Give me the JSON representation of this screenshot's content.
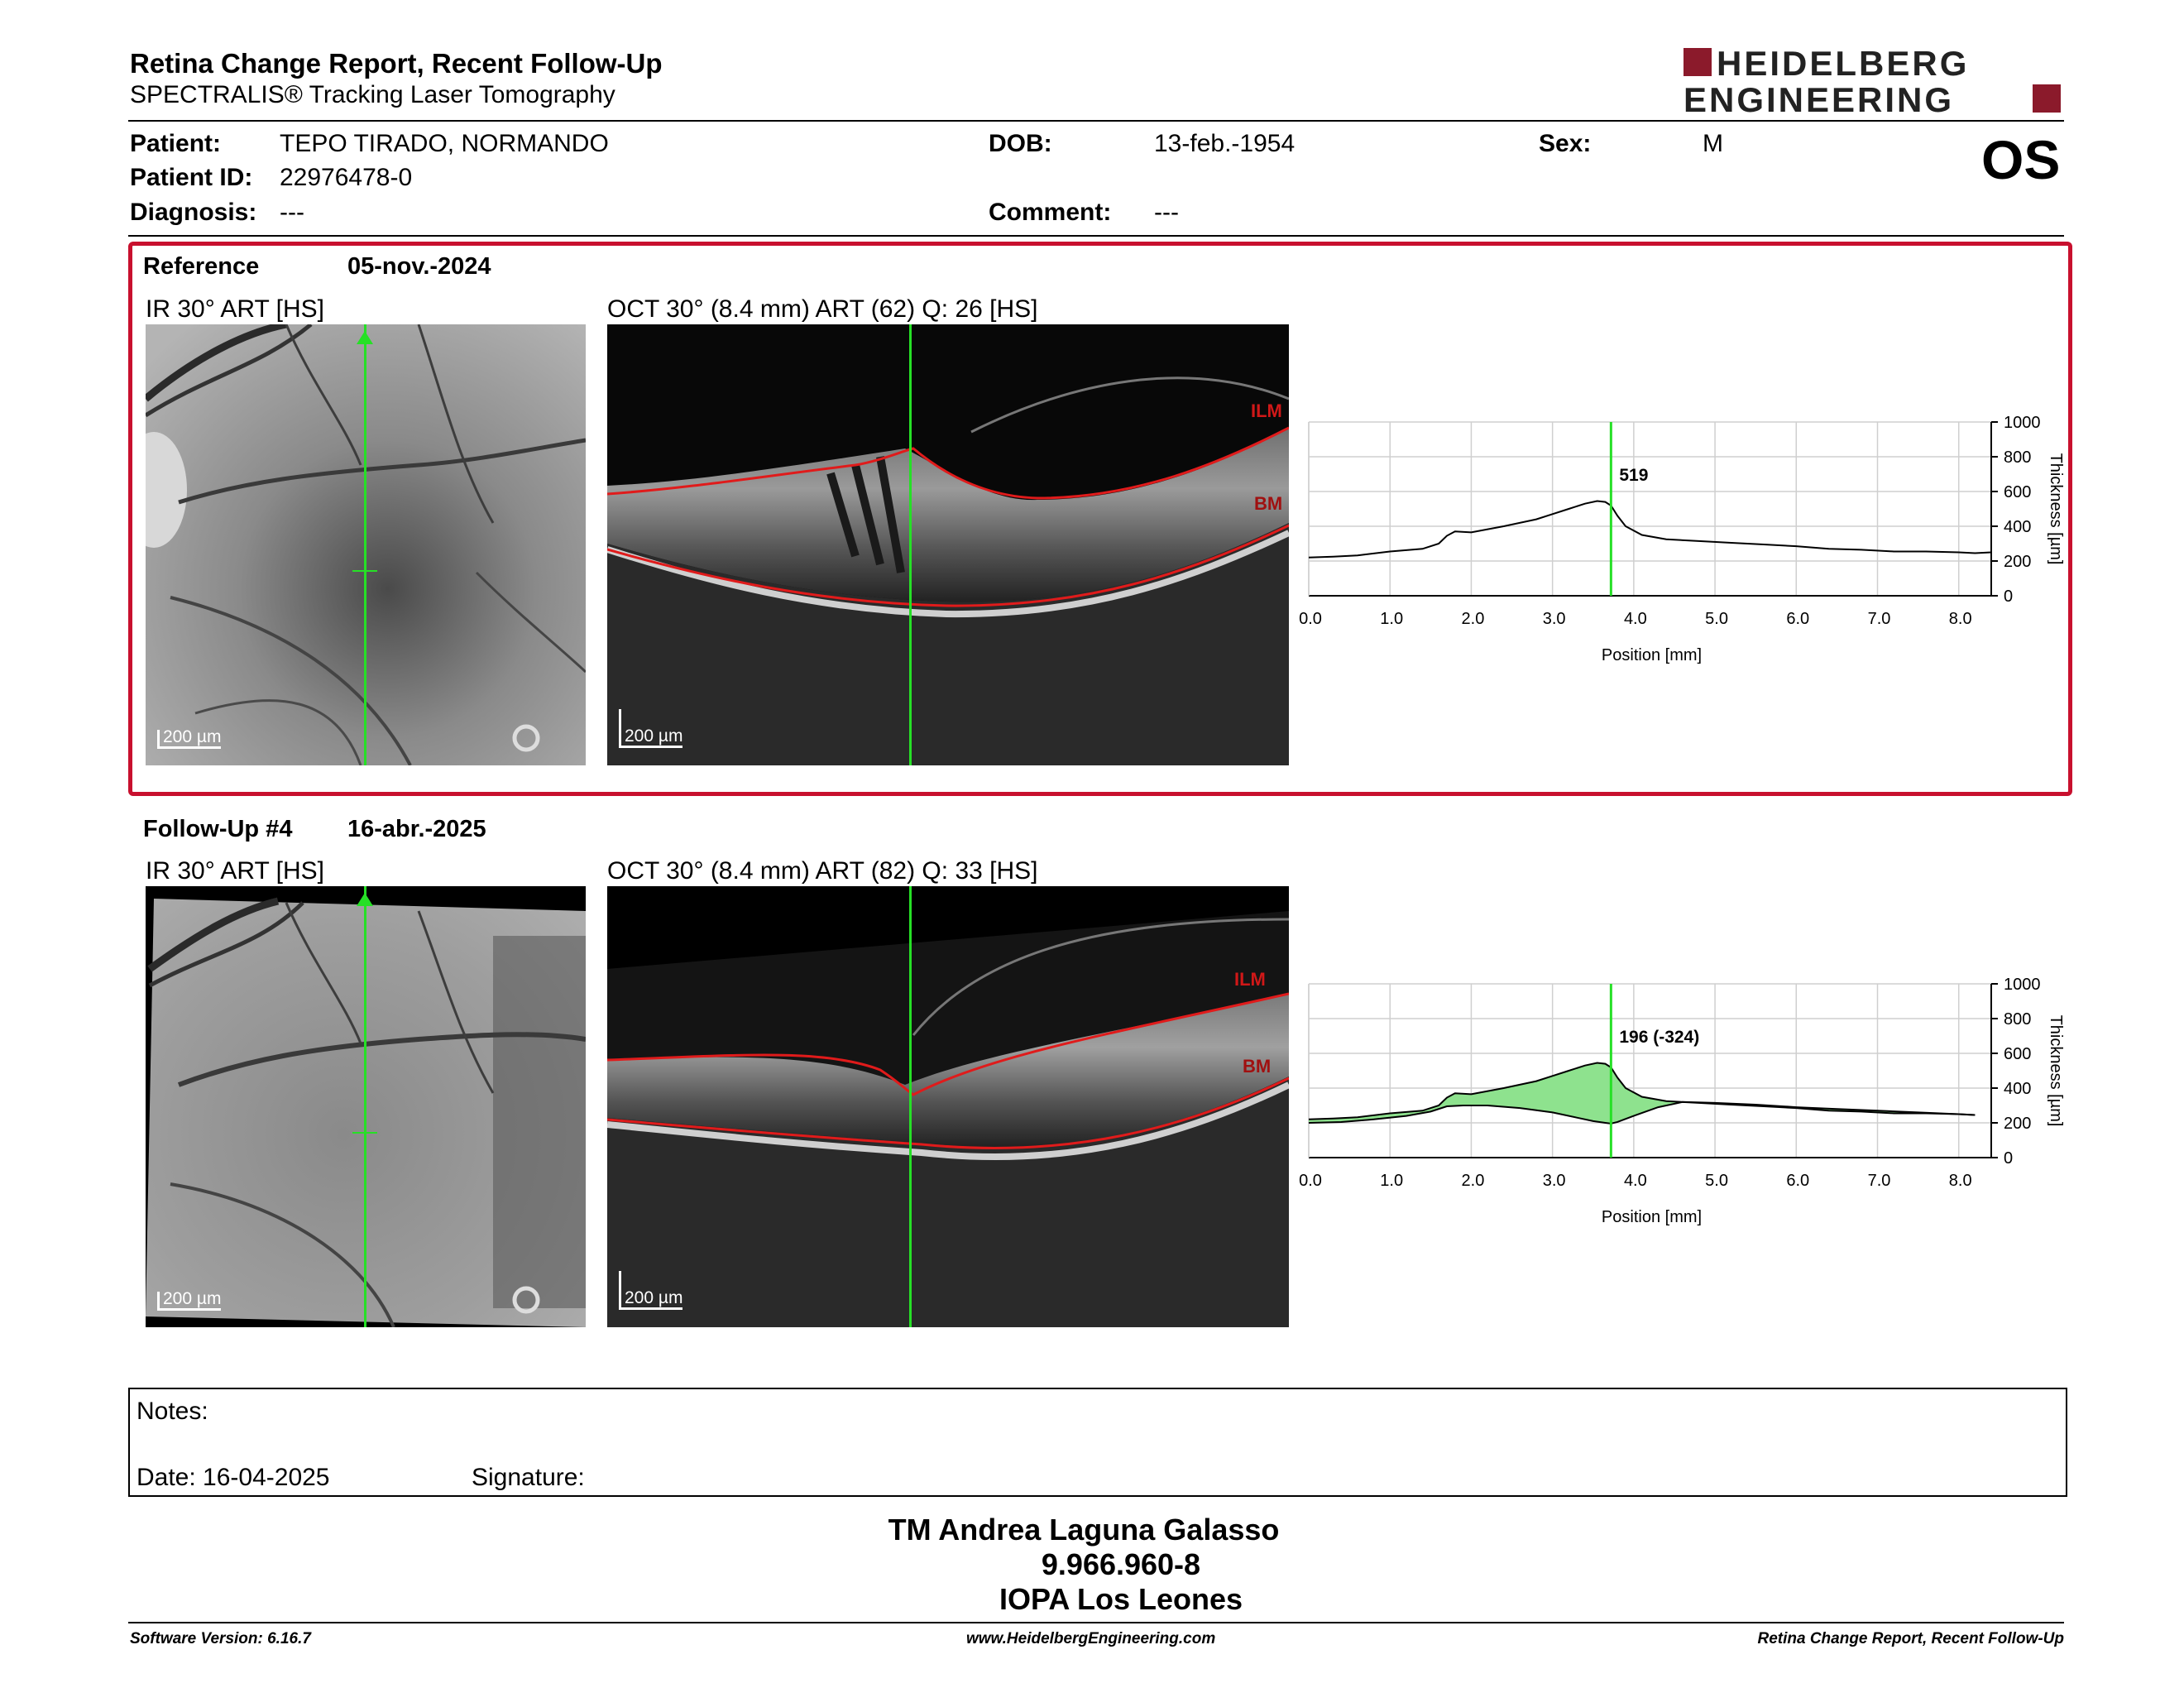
{
  "header": {
    "title": "Retina Change Report, Recent Follow-Up",
    "subtitle": "SPECTRALIS® Tracking Laser Tomography",
    "logo_line1": "HEIDELBERG",
    "logo_line2": "ENGINEERING",
    "eye": "OS"
  },
  "patient": {
    "patient_label": "Patient:",
    "patient_value": "TEPO TIRADO, NORMANDO",
    "id_label": "Patient ID:",
    "id_value": "22976478-0",
    "diagnosis_label": "Diagnosis:",
    "diagnosis_value": "---",
    "dob_label": "DOB:",
    "dob_value": "13-feb.-1954",
    "comment_label": "Comment:",
    "comment_value": "---",
    "sex_label": "Sex:",
    "sex_value": "M"
  },
  "reference": {
    "label": "Reference",
    "date": "05-nov.-2024",
    "ir_caption": "IR 30° ART [HS]",
    "oct_caption": "OCT 30° (8.4 mm) ART (62) Q: 26 [HS]",
    "ir_scale": "200 µm",
    "oct_scale": "200 µm",
    "ilm_label": "ILM",
    "bm_label": "BM"
  },
  "followup": {
    "label": "Follow-Up #4",
    "date": "16-abr.-2025",
    "ir_caption": "IR 30° ART [HS]",
    "oct_caption": "OCT 30° (8.4 mm) ART (82) Q: 33 [HS]",
    "ir_scale": "200 µm",
    "oct_scale": "200 µm",
    "ilm_label": "ILM",
    "bm_label": "BM"
  },
  "chart_data": [
    {
      "type": "line",
      "xlabel": "Position [mm]",
      "ylabel": "Thickness [µm]",
      "xlim": [
        0,
        8.4
      ],
      "ylim": [
        0,
        1000
      ],
      "x_ticks": [
        "0.0",
        "1.0",
        "2.0",
        "3.0",
        "4.0",
        "5.0",
        "6.0",
        "7.0",
        "8.0"
      ],
      "y_ticks": [
        "0",
        "200",
        "400",
        "600",
        "800",
        "1000"
      ],
      "marker_x": 3.72,
      "marker_label": "519",
      "grid": true,
      "series": [
        {
          "x": [
            0,
            0.3,
            0.6,
            1.0,
            1.4,
            1.6,
            1.7,
            1.8,
            2.0,
            2.4,
            2.8,
            3.0,
            3.2,
            3.4,
            3.55,
            3.65,
            3.72,
            3.8,
            3.9,
            4.1,
            4.4,
            4.8,
            5.2,
            5.6,
            6.0,
            6.4,
            6.8,
            7.2,
            7.6,
            8.0,
            8.2,
            8.4
          ],
          "y": [
            220,
            225,
            232,
            255,
            270,
            300,
            345,
            370,
            365,
            400,
            440,
            470,
            500,
            530,
            545,
            540,
            519,
            460,
            400,
            350,
            325,
            315,
            305,
            295,
            285,
            270,
            265,
            255,
            255,
            250,
            245,
            250
          ]
        }
      ]
    },
    {
      "type": "area",
      "xlabel": "Position [mm]",
      "ylabel": "Thickness [µm]",
      "xlim": [
        0,
        8.4
      ],
      "ylim": [
        0,
        1000
      ],
      "x_ticks": [
        "0.0",
        "1.0",
        "2.0",
        "3.0",
        "4.0",
        "5.0",
        "6.0",
        "7.0",
        "8.0"
      ],
      "y_ticks": [
        "0",
        "200",
        "400",
        "600",
        "800",
        "1000"
      ],
      "marker_x": 3.72,
      "marker_label": "196 (-324)",
      "grid": true,
      "fill_color": "#8ee28e",
      "series": [
        {
          "name_hidden": true,
          "x": [
            0,
            0.4,
            0.8,
            1.2,
            1.5,
            1.7,
            1.9,
            2.2,
            2.6,
            3.0,
            3.3,
            3.5,
            3.65,
            3.72,
            3.8,
            4.0,
            4.3,
            4.6,
            5.0,
            5.5,
            6.0,
            6.5,
            7.0,
            7.5,
            8.0,
            8.2
          ],
          "y": [
            200,
            205,
            220,
            240,
            265,
            295,
            300,
            300,
            285,
            260,
            230,
            210,
            200,
            196,
            205,
            240,
            290,
            320,
            315,
            305,
            290,
            280,
            270,
            260,
            250,
            245
          ]
        },
        {
          "name_hidden": true,
          "x": [
            0,
            0.3,
            0.6,
            1.0,
            1.4,
            1.6,
            1.7,
            1.8,
            2.0,
            2.4,
            2.8,
            3.0,
            3.2,
            3.4,
            3.55,
            3.65,
            3.72,
            3.8,
            3.9,
            4.1,
            4.4,
            4.8,
            5.2,
            5.6,
            6.0,
            6.4,
            6.8,
            7.2,
            7.6,
            8.0,
            8.2
          ],
          "y": [
            220,
            225,
            232,
            255,
            270,
            300,
            345,
            370,
            365,
            400,
            440,
            470,
            500,
            530,
            545,
            540,
            519,
            460,
            400,
            350,
            325,
            315,
            305,
            295,
            285,
            270,
            265,
            255,
            255,
            250,
            245
          ]
        }
      ]
    }
  ],
  "notes": {
    "notes_label": "Notes:",
    "date_label": "Date: 16-04-2025",
    "signature_label": "Signature:"
  },
  "signature": {
    "name": "TM Andrea Laguna Galasso",
    "rut": "9.966.960-8",
    "institution": "IOPA Los Leones"
  },
  "footer": {
    "software": "Software Version: 6.16.7",
    "website": "www.HeidelbergEngineering.com",
    "report": "Retina Change Report, Recent Follow-Up"
  }
}
